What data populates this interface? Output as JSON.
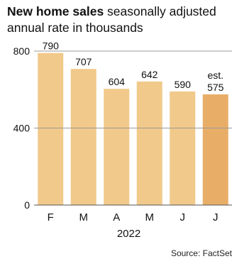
{
  "chart_data": {
    "type": "bar",
    "title": "New home sales",
    "subtitle": "seasonally adjusted annual rate in thousands",
    "categories": [
      "F",
      "M",
      "A",
      "M",
      "J",
      "J"
    ],
    "values": [
      790,
      707,
      604,
      642,
      590,
      575
    ],
    "data_labels": [
      "790",
      "707",
      "604",
      "642",
      "590",
      "575"
    ],
    "estimate_prefix": [
      "",
      "",
      "",
      "",
      "",
      "est."
    ],
    "xlabel": "2022",
    "ylabel": "",
    "ylim": [
      0,
      800
    ],
    "yticks": [
      0,
      400,
      800
    ],
    "ytick_labels": [
      "0",
      "400",
      "800"
    ],
    "grid": true,
    "colors": {
      "bar": "#f1c98a",
      "bar_estimate": "#e8ae67",
      "grid": "#9a9a9a"
    }
  },
  "source": "Source: FactSet"
}
